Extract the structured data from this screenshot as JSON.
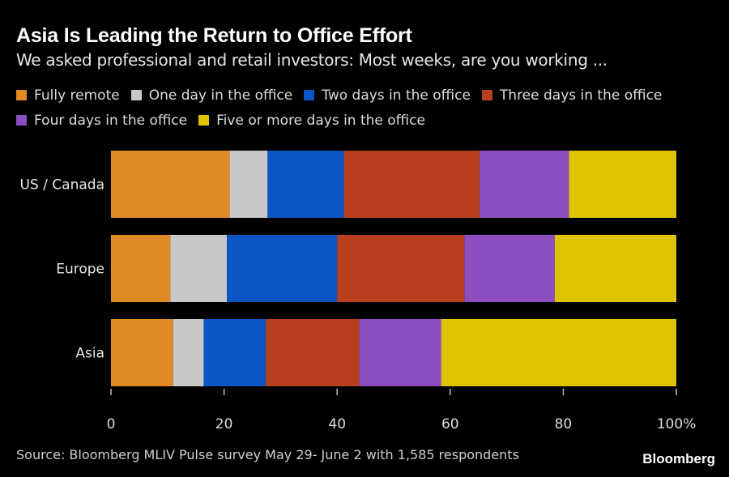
{
  "header": {
    "title": "Asia Is Leading the Return to Office Effort",
    "subtitle": "We asked professional and retail investors: Most weeks, are you working ..."
  },
  "legend": [
    {
      "label": "Fully remote",
      "color": "#e08a26"
    },
    {
      "label": "One day in the office",
      "color": "#c8c8c8"
    },
    {
      "label": "Two days in the office",
      "color": "#0c55c4"
    },
    {
      "label": "Three days in the office",
      "color": "#b9401e"
    },
    {
      "label": "Four days in the office",
      "color": "#8d4ebf"
    },
    {
      "label": "Five or more days in the office",
      "color": "#dec400"
    }
  ],
  "chart_data": {
    "type": "bar",
    "orientation": "horizontal",
    "stacked": true,
    "categories": [
      "US / Canada",
      "Europe",
      "Asia"
    ],
    "series": [
      {
        "name": "Fully remote",
        "values": [
          21,
          10.5,
          11
        ]
      },
      {
        "name": "One day in the office",
        "values": [
          6.7,
          10,
          5.4
        ]
      },
      {
        "name": "Two days in the office",
        "values": [
          13.5,
          19.5,
          11
        ]
      },
      {
        "name": "Three days in the office",
        "values": [
          24,
          22.5,
          16.5
        ]
      },
      {
        "name": "Four days in the office",
        "values": [
          15.8,
          16,
          14.5
        ]
      },
      {
        "name": "Five or more days in the office",
        "values": [
          19,
          21.5,
          41.6
        ]
      }
    ],
    "xlim": [
      0,
      100
    ],
    "xticks": [
      "0",
      "20",
      "40",
      "60",
      "80",
      "100%"
    ],
    "grid": false,
    "legend_position": "top"
  },
  "footer": {
    "source": "Source: Bloomberg MLIV Pulse survey May 29- June 2 with 1,585 respondents",
    "brand": "Bloomberg"
  }
}
